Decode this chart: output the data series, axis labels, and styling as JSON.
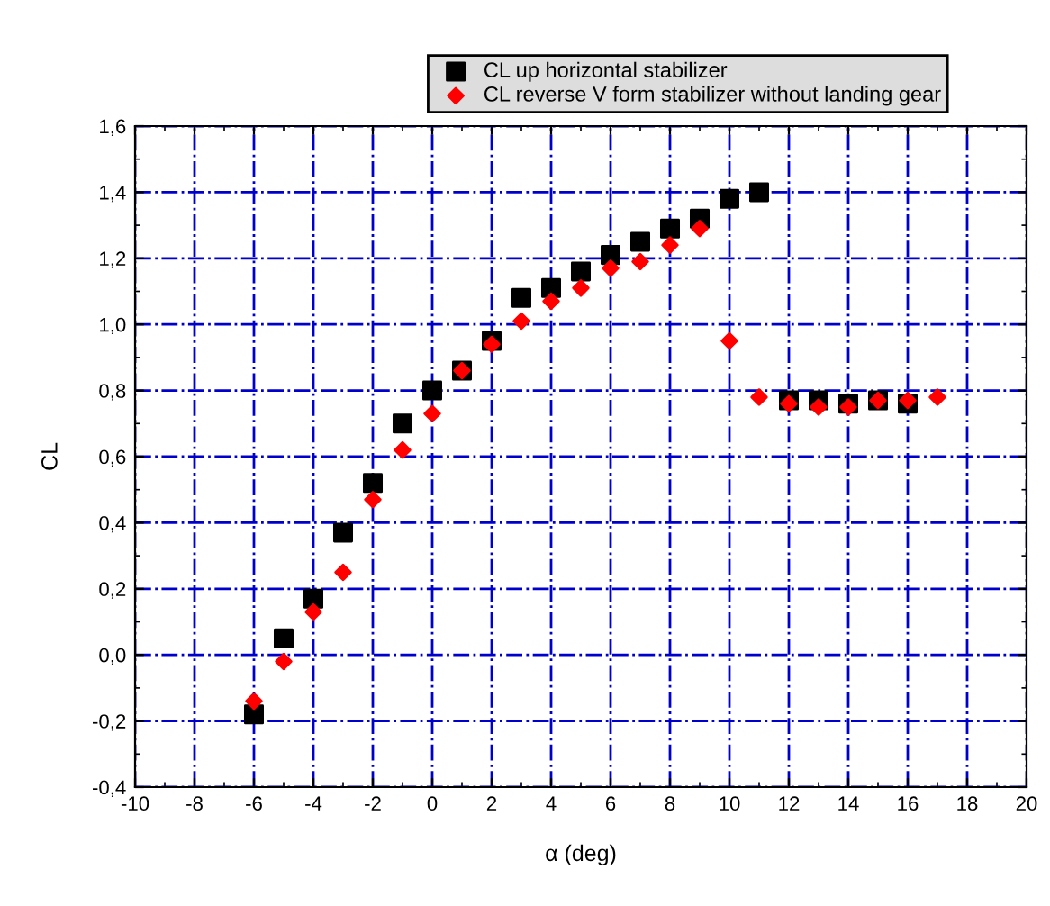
{
  "chart_data": {
    "type": "scatter",
    "xlabel": "α (deg)",
    "ylabel": "CL",
    "legend": "top",
    "grid": true,
    "x": [
      -6,
      -5,
      -4,
      -3,
      -2,
      -1,
      0,
      1,
      2,
      3,
      4,
      5,
      6,
      7,
      8,
      9,
      10,
      11,
      12,
      13,
      14,
      15,
      16,
      17
    ],
    "series": [
      {
        "name": "CL up horizontal stabilizer",
        "color": "#000000",
        "marker": "square",
        "values": [
          -0.18,
          0.05,
          0.17,
          0.37,
          0.52,
          0.7,
          0.8,
          0.86,
          0.95,
          1.08,
          1.11,
          1.16,
          1.21,
          1.25,
          1.29,
          1.32,
          1.38,
          1.4,
          0.77,
          0.77,
          0.76,
          0.77,
          0.76,
          null
        ]
      },
      {
        "name": "CL reverse V form stabilizer without landing gear",
        "color": "#ff0000",
        "marker": "diamond",
        "values": [
          -0.14,
          -0.02,
          0.13,
          0.25,
          0.47,
          0.62,
          0.73,
          0.86,
          0.94,
          1.01,
          1.07,
          1.11,
          1.17,
          1.19,
          1.24,
          1.29,
          0.95,
          0.78,
          0.76,
          0.75,
          0.75,
          0.77,
          0.77,
          0.78
        ]
      }
    ],
    "xlim": [
      -10,
      20
    ],
    "xticks": [
      -10,
      -8,
      -6,
      -4,
      -2,
      0,
      2,
      4,
      6,
      8,
      10,
      12,
      14,
      16,
      18,
      20
    ],
    "ylim": [
      -0.4,
      1.6
    ],
    "yticks": [
      {
        "value": -0.4,
        "label": "-0,4"
      },
      {
        "value": -0.2,
        "label": "-0,2"
      },
      {
        "value": 0,
        "label": "0,0"
      },
      {
        "value": 0.2,
        "label": "0,2"
      },
      {
        "value": 0.4,
        "label": "0,4"
      },
      {
        "value": 0.6,
        "label": "0,6"
      },
      {
        "value": 0.8,
        "label": "0,8"
      },
      {
        "value": 1.0,
        "label": "1,0"
      },
      {
        "value": 1.2,
        "label": "1,2"
      },
      {
        "value": 1.4,
        "label": "1,4"
      },
      {
        "value": 1.6,
        "label": "1,6"
      }
    ]
  }
}
